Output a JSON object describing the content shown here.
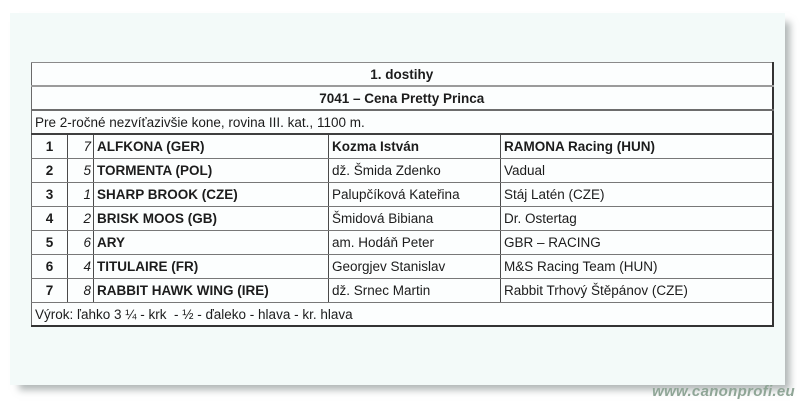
{
  "header": {
    "session_title": "1. dostihy",
    "race_title": "7041 – Cena Pretty Princa",
    "conditions": "Pre 2-ročné nezvíťazivšie kone, rovina III. kat., 1100 m."
  },
  "results": {
    "rows": [
      {
        "place": "1",
        "number": "7",
        "horse": "ALFKONA (GER)",
        "jockey": "Kozma István",
        "owner": "RAMONA Racing (HUN)"
      },
      {
        "place": "2",
        "number": "5",
        "horse": "TORMENTA (POL)",
        "jockey": "dž. Šmida Zdenko",
        "owner": "Vadual"
      },
      {
        "place": "3",
        "number": "1",
        "horse": "SHARP BROOK (CZE)",
        "jockey": "Palupčíková Kateřina",
        "owner": "Stáj Latén (CZE)"
      },
      {
        "place": "4",
        "number": "2",
        "horse": "BRISK MOOS (GB)",
        "jockey": "Šmidová Bibiana",
        "owner": "Dr. Ostertag"
      },
      {
        "place": "5",
        "number": "6",
        "horse": "ARY",
        "jockey": "am. Hodáň Peter",
        "owner": "GBR – RACING"
      },
      {
        "place": "6",
        "number": "4",
        "horse": "TITULAIRE (FR)",
        "jockey": "Georgjev Stanislav",
        "owner": "M&S Racing Team (HUN)"
      },
      {
        "place": "7",
        "number": "8",
        "horse": "RABBIT HAWK WING (IRE)",
        "jockey": "dž. Srnec Martin",
        "owner": "Rabbit Trhový Štěpánov (CZE)"
      }
    ]
  },
  "verdict": "Výrok: ľahko 3 ¼ - krk  - ½ - ďaleko - hlava - kr. hlava",
  "watermark": "www.canonprofi.eu",
  "colors": {
    "page_bg": "#f3faf9",
    "watermark_green": "#8fa596",
    "border_dark": "#333333",
    "border_gray": "#9b9b9b"
  }
}
